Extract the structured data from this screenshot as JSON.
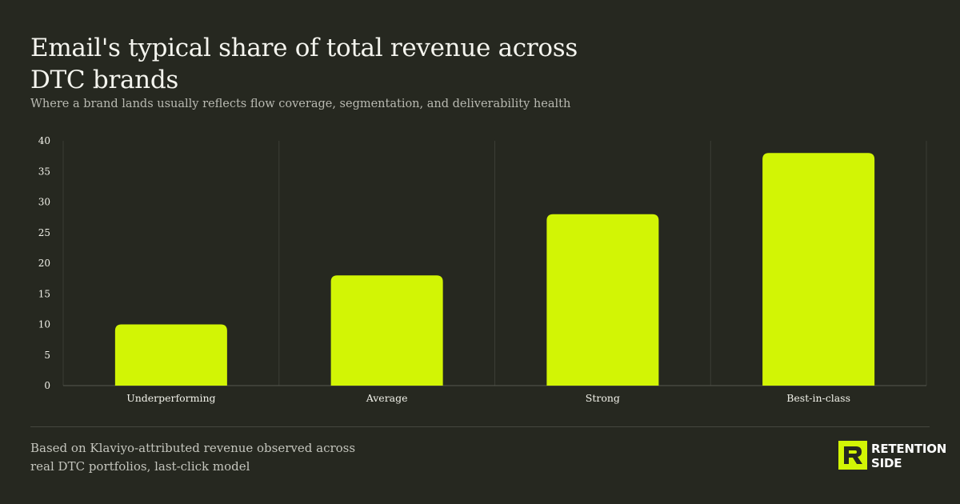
{
  "title": "Email's typical share of total revenue across DTC brands",
  "subtitle": "Where a brand lands usually reflects flow coverage, segmentation, and deliverability health",
  "footnote": "Based on Klaviyo-attributed revenue observed across real DTC portfolios, last-click model",
  "logo": {
    "line1": "RETENTION",
    "line2": "SIDE"
  },
  "colors": {
    "background": "#262820",
    "bar": "#d2f505",
    "grid": "#3b3d35",
    "text": "#f2f2ea",
    "muted": "#b9bab2"
  },
  "chart_data": {
    "type": "bar",
    "title": "Email's typical share of total revenue across DTC brands",
    "xlabel": "",
    "ylabel": "",
    "categories": [
      "Underperforming",
      "Average",
      "Strong",
      "Best-in-class"
    ],
    "values": [
      10,
      18,
      28,
      38
    ],
    "ylim": [
      0,
      40
    ],
    "yticks": [
      0,
      5,
      10,
      15,
      20,
      25,
      30,
      35,
      40
    ],
    "grid": "vertical category separators",
    "legend": "none"
  }
}
